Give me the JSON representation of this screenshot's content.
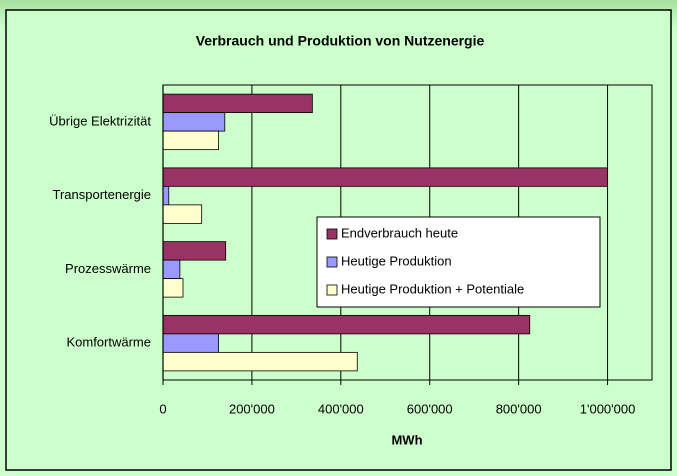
{
  "chart_data": {
    "type": "hbar",
    "title": "Verbrauch und Produktion von Nutzenergie",
    "xlabel": "MWh",
    "categories": [
      "Übrige Elektrizität",
      "Transportenergie",
      "Prozesswärme",
      "Komfortwärme"
    ],
    "series": [
      {
        "name": "Endverbrauch heute",
        "color": "#993366",
        "values": [
          336000,
          1000000,
          141000,
          825000
        ]
      },
      {
        "name": "Heutige Produktion",
        "color": "#9999ff",
        "values": [
          139000,
          13000,
          38000,
          125000
        ]
      },
      {
        "name": "Heutige Produktion + Potentiale",
        "color": "#ffffcc",
        "values": [
          125000,
          87000,
          45000,
          437000
        ]
      }
    ],
    "xlim": [
      0,
      1100000
    ],
    "xticks": [
      0,
      {
        "value": 200000,
        "label": "200'000"
      },
      {
        "value": 400000,
        "label": "400'000"
      },
      {
        "value": 600000,
        "label": "600'000"
      },
      {
        "value": 800000,
        "label": "800'000"
      },
      {
        "value": 1000000,
        "label": "1'000'000"
      }
    ],
    "grid": true
  }
}
